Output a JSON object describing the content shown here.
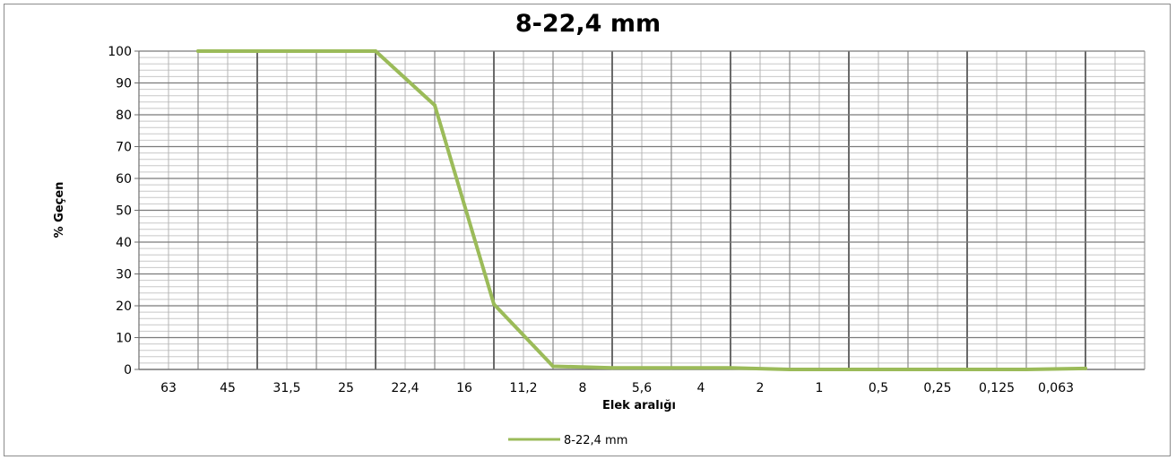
{
  "chart_data": {
    "type": "line",
    "title": "8-22,4 mm",
    "xlabel": "Elek aralığı",
    "ylabel": "% Geçen",
    "ylim": [
      0,
      100
    ],
    "y_major_step": 10,
    "y_minor_step": 2,
    "grid": true,
    "legend_position": "bottom",
    "categories": [
      "63",
      "45",
      "31,5",
      "25",
      "22,4",
      "16",
      "11,2",
      "8",
      "5,6",
      "4",
      "2",
      "1",
      "0,5",
      "0,25",
      "0,125",
      "0,063"
    ],
    "series": [
      {
        "name": "8-22,4 mm",
        "color": "#9bbb59",
        "values": [
          100,
          100,
          100,
          100,
          83,
          20.5,
          1,
          0.5,
          0.5,
          0.5,
          0,
          0,
          0,
          0,
          0,
          0.3
        ]
      }
    ]
  }
}
